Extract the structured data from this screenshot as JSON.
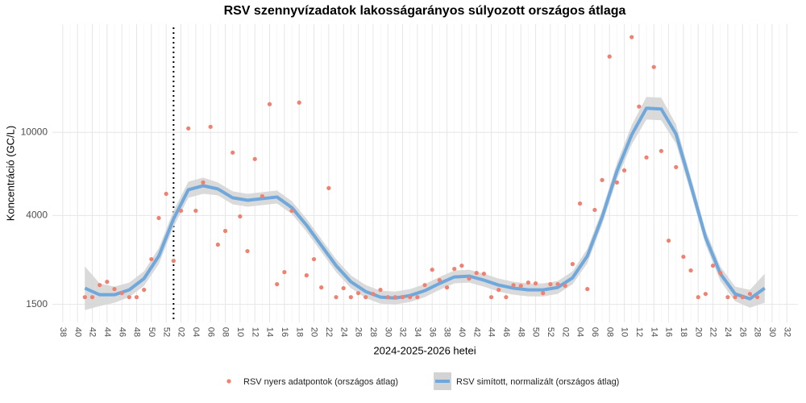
{
  "chart_data": {
    "type": "line",
    "title": "RSV szennyvízadatok lakosságarányos súlyozott országos átlaga",
    "x_label": "2024-2025-2026 hetei",
    "y_label": "Koncentráció (GC/L)",
    "log_y": true,
    "grid": true,
    "legend": "bottom",
    "vline_x": 15,
    "xlim": [
      -1.4,
      99.5
    ],
    "ylim": [
      1230,
      33000
    ],
    "yticks": [
      1500,
      4000,
      10000
    ],
    "xticks": [
      {
        "value": 0,
        "label": "38"
      },
      {
        "value": 2,
        "label": "40"
      },
      {
        "value": 4,
        "label": "42"
      },
      {
        "value": 6,
        "label": "44"
      },
      {
        "value": 8,
        "label": "46"
      },
      {
        "value": 10,
        "label": "48"
      },
      {
        "value": 12,
        "label": "50"
      },
      {
        "value": 14,
        "label": "52"
      },
      {
        "value": 16,
        "label": "02"
      },
      {
        "value": 18,
        "label": "04"
      },
      {
        "value": 20,
        "label": "06"
      },
      {
        "value": 22,
        "label": "08"
      },
      {
        "value": 24,
        "label": "10"
      },
      {
        "value": 26,
        "label": "12"
      },
      {
        "value": 28,
        "label": "14"
      },
      {
        "value": 30,
        "label": "16"
      },
      {
        "value": 32,
        "label": "18"
      },
      {
        "value": 34,
        "label": "20"
      },
      {
        "value": 36,
        "label": "22"
      },
      {
        "value": 38,
        "label": "24"
      },
      {
        "value": 40,
        "label": "26"
      },
      {
        "value": 42,
        "label": "28"
      },
      {
        "value": 44,
        "label": "30"
      },
      {
        "value": 46,
        "label": "32"
      },
      {
        "value": 48,
        "label": "34"
      },
      {
        "value": 50,
        "label": "36"
      },
      {
        "value": 52,
        "label": "38"
      },
      {
        "value": 54,
        "label": "40"
      },
      {
        "value": 56,
        "label": "42"
      },
      {
        "value": 58,
        "label": "44"
      },
      {
        "value": 60,
        "label": "46"
      },
      {
        "value": 62,
        "label": "48"
      },
      {
        "value": 64,
        "label": "50"
      },
      {
        "value": 66,
        "label": "52"
      },
      {
        "value": 68,
        "label": "02"
      },
      {
        "value": 70,
        "label": "04"
      },
      {
        "value": 72,
        "label": "06"
      },
      {
        "value": 74,
        "label": "08"
      },
      {
        "value": 76,
        "label": "10"
      },
      {
        "value": 78,
        "label": "12"
      },
      {
        "value": 80,
        "label": "14"
      },
      {
        "value": 82,
        "label": "16"
      },
      {
        "value": 84,
        "label": "18"
      },
      {
        "value": 86,
        "label": "20"
      },
      {
        "value": 88,
        "label": "22"
      },
      {
        "value": 90,
        "label": "24"
      },
      {
        "value": 92,
        "label": "26"
      },
      {
        "value": 94,
        "label": "28"
      },
      {
        "value": 96,
        "label": "30"
      },
      {
        "value": 98,
        "label": "32"
      }
    ],
    "series": [
      {
        "name": "RSV nyers adatpontok (országos átlag)",
        "type": "scatter",
        "color": "#f08070",
        "x": [
          3,
          4,
          5,
          6,
          7,
          8,
          9,
          10,
          11,
          12,
          13,
          14,
          15,
          16,
          17,
          18,
          19,
          20,
          21,
          22,
          23,
          24,
          25,
          26,
          27,
          28,
          29,
          30,
          31,
          32,
          33,
          34,
          35,
          36,
          37,
          38,
          39,
          40,
          41,
          42,
          43,
          44,
          45,
          46,
          47,
          48,
          49,
          50,
          51,
          52,
          53,
          54,
          55,
          56,
          57,
          58,
          59,
          60,
          61,
          62,
          63,
          64,
          65,
          66,
          67,
          68,
          69,
          70,
          71,
          72,
          73,
          74,
          75,
          76,
          77,
          78,
          79,
          80,
          81,
          82,
          83,
          84,
          85,
          86,
          87,
          88,
          89,
          90,
          91,
          92,
          93,
          94
        ],
        "values": [
          1625,
          1625,
          1857,
          1925,
          1777,
          1699,
          1625,
          1625,
          1761,
          2470,
          3890,
          5080,
          2426,
          4215,
          10450,
          4215,
          5757,
          10640,
          2900,
          3373,
          8005,
          3960,
          2700,
          7455,
          4947,
          13655,
          1874,
          2142,
          4215,
          13900,
          2067,
          2470,
          1809,
          5410,
          1625,
          1794,
          1625,
          1699,
          1625,
          1684,
          1761,
          1625,
          1625,
          1625,
          1625,
          1625,
          1857,
          2200,
          1960,
          1809,
          2220,
          2300,
          1995,
          2123,
          2104,
          1625,
          1761,
          1625,
          1857,
          1841,
          1908,
          1891,
          1699,
          1874,
          1874,
          1841,
          2341,
          4565,
          1777,
          4253,
          5913,
          23100,
          5757,
          6580,
          28610,
          13300,
          7590,
          20570,
          8150,
          3030,
          6820,
          2537,
          2181,
          1625,
          1684,
          2300,
          2123,
          1625,
          1625,
          1625,
          1684,
          1625
        ]
      },
      {
        "name": "RSV simított, normalizált (országos átlag)",
        "type": "line",
        "color": "#6fa8dc",
        "band_color": "#d3d3d3",
        "x": [
          3,
          5,
          7,
          9,
          11,
          13,
          15,
          17,
          19,
          21,
          23,
          25,
          27,
          29,
          31,
          33,
          35,
          37,
          39,
          41,
          43,
          45,
          47,
          49,
          51,
          53,
          55,
          57,
          59,
          61,
          63,
          65,
          67,
          69,
          71,
          73,
          75,
          77,
          79,
          81,
          83,
          85,
          87,
          89,
          91,
          93,
          95
        ],
        "values": [
          1794,
          1669,
          1669,
          1761,
          1995,
          2559,
          3856,
          5313,
          5556,
          5360,
          4862,
          4732,
          4818,
          4904,
          4368,
          3591,
          2873,
          2300,
          1925,
          1729,
          1625,
          1610,
          1654,
          1745,
          1891,
          2031,
          2049,
          1960,
          1857,
          1794,
          1761,
          1761,
          1809,
          2012,
          2559,
          3925,
          6521,
          9737,
          13065,
          12950,
          9825,
          5604,
          3142,
          2104,
          1684,
          1596,
          1794
        ],
        "upper": [
          2280,
          1891,
          1824,
          1908,
          2161,
          2797,
          4215,
          5808,
          6073,
          5757,
          5219,
          5080,
          5173,
          5267,
          4690,
          3856,
          3086,
          2470,
          2067,
          1857,
          1745,
          1729,
          1777,
          1874,
          2031,
          2181,
          2200,
          2104,
          1995,
          1925,
          1891,
          1891,
          1942,
          2161,
          2773,
          4253,
          7129,
          10835,
          14800,
          14670,
          10930,
          6127,
          3403,
          2280,
          1824,
          1761,
          2104
        ],
        "lower": [
          1409,
          1473,
          1527,
          1625,
          1841,
          2341,
          3527,
          4862,
          5080,
          4993,
          4525,
          4406,
          4485,
          4565,
          4068,
          3344,
          2676,
          2142,
          1794,
          1610,
          1513,
          1500,
          1540,
          1625,
          1761,
          1891,
          1908,
          1824,
          1729,
          1669,
          1639,
          1639,
          1684,
          1874,
          2362,
          3622,
          5965,
          8750,
          11530,
          11430,
          8830,
          5128,
          2900,
          1942,
          1554,
          1447,
          1527
        ]
      }
    ]
  }
}
